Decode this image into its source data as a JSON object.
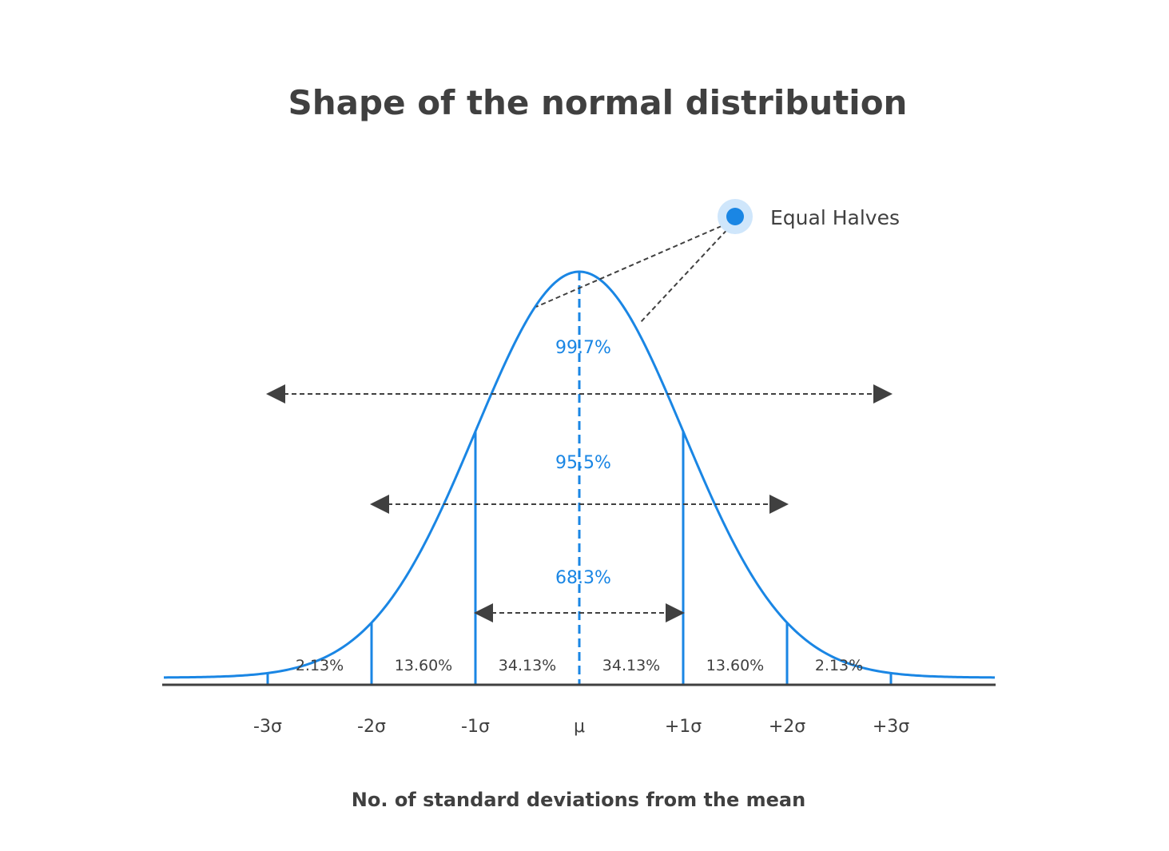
{
  "chart_data": {
    "type": "line",
    "title": "Shape of the normal distribution",
    "xlabel": "No. of standard deviations from the mean",
    "ylabel": "",
    "xlim": [
      -4.0,
      4.0
    ],
    "x_ticks": [
      {
        "value": -3,
        "label": "-3σ"
      },
      {
        "value": -2,
        "label": "-2σ"
      },
      {
        "value": -1,
        "label": "-1σ"
      },
      {
        "value": 0,
        "label": "μ"
      },
      {
        "value": 1,
        "label": "+1σ"
      },
      {
        "value": 2,
        "label": "+2σ"
      },
      {
        "value": 3,
        "label": "+3σ"
      }
    ],
    "segments": [
      {
        "from": -3,
        "to": -2,
        "label": "2.13%"
      },
      {
        "from": -2,
        "to": -1,
        "label": "13.60%"
      },
      {
        "from": -1,
        "to": 0,
        "label": "34.13%"
      },
      {
        "from": 0,
        "to": 1,
        "label": "34.13%"
      },
      {
        "from": 1,
        "to": 2,
        "label": "13.60%"
      },
      {
        "from": 2,
        "to": 3,
        "label": "2.13%"
      }
    ],
    "ranges": [
      {
        "sigma": 1,
        "label": "68.3%"
      },
      {
        "sigma": 2,
        "label": "95.5%"
      },
      {
        "sigma": 3,
        "label": "99.7%"
      }
    ],
    "annotation": {
      "label": "Equal Halves"
    },
    "grid": false,
    "colors": {
      "curve": "#1a86e4",
      "axis": "#404040",
      "arrow": "#404040",
      "marker": "#1a86e4",
      "marker_halo": "#cfe6fb"
    }
  }
}
